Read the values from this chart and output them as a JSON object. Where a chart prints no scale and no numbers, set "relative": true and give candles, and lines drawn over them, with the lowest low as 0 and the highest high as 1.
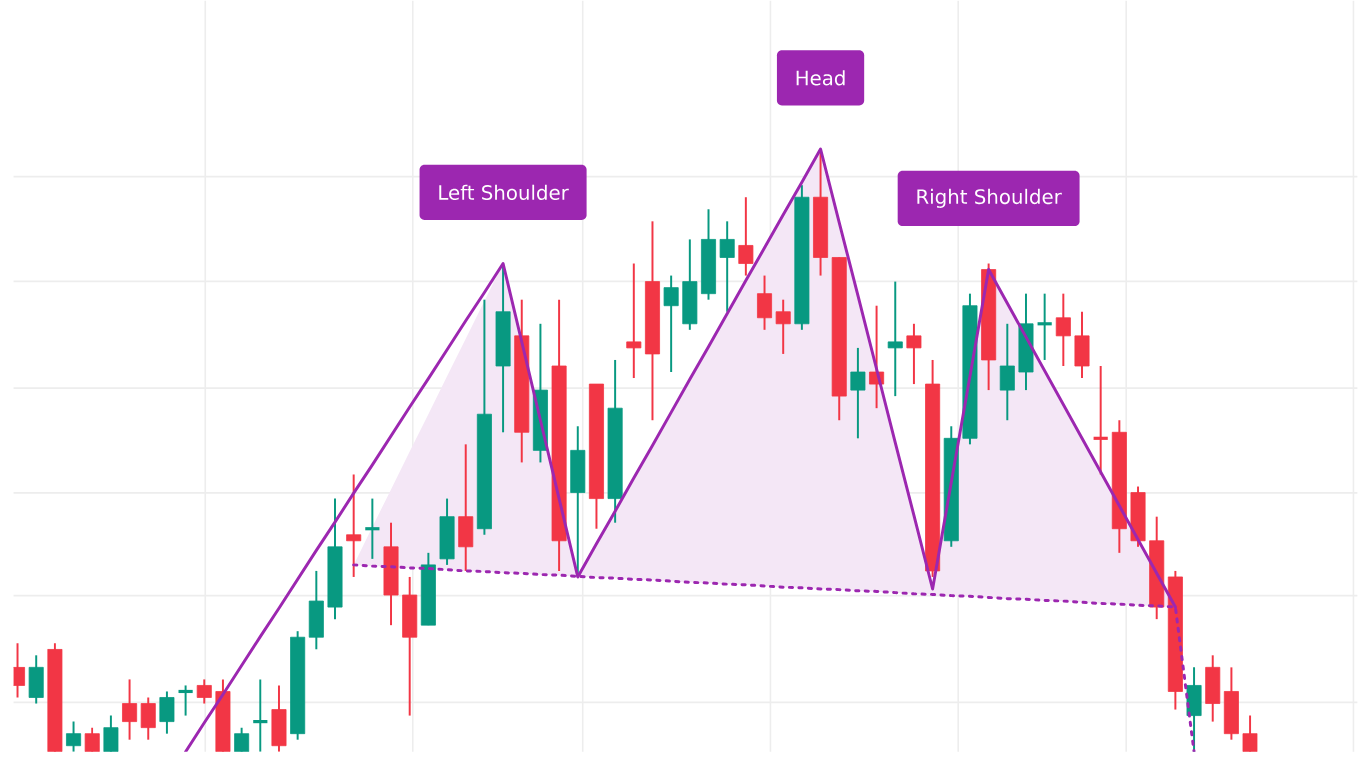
{
  "chart_data": {
    "type": "candlestick",
    "relative": true,
    "grid": true,
    "categories": [
      null,
      null,
      null,
      null,
      null,
      null,
      null,
      null,
      null,
      null,
      null,
      null,
      null,
      null,
      null,
      null,
      null,
      null,
      null,
      null,
      null,
      null,
      null,
      null,
      null,
      null,
      null,
      null,
      null,
      null,
      null,
      null,
      null,
      null,
      null,
      null,
      null,
      null,
      null,
      null,
      null,
      null,
      null,
      null,
      null,
      null,
      null,
      null,
      null,
      null,
      null,
      null,
      null,
      null,
      null,
      null,
      null,
      null,
      null,
      null,
      null,
      null,
      null,
      null,
      null,
      null,
      null
    ],
    "ohlc": [
      [
        0.14,
        0.18,
        0.09,
        0.11
      ],
      [
        0.09,
        0.16,
        0.08,
        0.14
      ],
      [
        0.17,
        0.18,
        0,
        0
      ],
      [
        0.01,
        0.05,
        0,
        0.03
      ],
      [
        0.03,
        0.04,
        0,
        0
      ],
      [
        0,
        0.06,
        0,
        0.04
      ],
      [
        0.08,
        0.12,
        0.02,
        0.05
      ],
      [
        0.08,
        0.09,
        0.02,
        0.04
      ],
      [
        0.05,
        0.1,
        0.03,
        0.09
      ],
      [
        0.1,
        0.11,
        0.06,
        0.1
      ],
      [
        0.11,
        0.12,
        0.08,
        0.09
      ],
      [
        0.1,
        0.12,
        0,
        0
      ],
      [
        0,
        0.04,
        0,
        0.03
      ],
      [
        0.05,
        0.12,
        0,
        0.05
      ],
      [
        0.07,
        0.11,
        0,
        0.01
      ],
      [
        0.03,
        0.2,
        0.02,
        0.19
      ],
      [
        0.19,
        0.3,
        0.17,
        0.25
      ],
      [
        0.24,
        0.42,
        0.22,
        0.34
      ],
      [
        0.36,
        0.46,
        0.29,
        0.35
      ],
      [
        0.37,
        0.42,
        0.32,
        0.37
      ],
      [
        0.34,
        0.38,
        0.21,
        0.26
      ],
      [
        0.26,
        0.29,
        0.06,
        0.19
      ],
      [
        0.21,
        0.33,
        0.21,
        0.31
      ],
      [
        0.32,
        0.42,
        0.31,
        0.39
      ],
      [
        0.39,
        0.51,
        0.3,
        0.34
      ],
      [
        0.37,
        0.75,
        0.36,
        0.56
      ],
      [
        0.64,
        0.81,
        0.53,
        0.73
      ],
      [
        0.69,
        0.75,
        0.48,
        0.53
      ],
      [
        0.5,
        0.71,
        0.48,
        0.6
      ],
      [
        0.64,
        0.75,
        0.3,
        0.35
      ],
      [
        0.43,
        0.54,
        0.29,
        0.5
      ],
      [
        0.61,
        0.61,
        0.37,
        0.42
      ],
      [
        0.42,
        0.65,
        0.38,
        0.57
      ],
      [
        0.68,
        0.81,
        0.62,
        0.67
      ],
      [
        0.78,
        0.88,
        0.55,
        0.66
      ],
      [
        0.74,
        0.79,
        0.63,
        0.77
      ],
      [
        0.71,
        0.85,
        0.7,
        0.78
      ],
      [
        0.76,
        0.9,
        0.75,
        0.85
      ],
      [
        0.82,
        0.88,
        0.73,
        0.85
      ],
      [
        0.84,
        0.92,
        0.79,
        0.81
      ],
      [
        0.76,
        0.79,
        0.7,
        0.72
      ],
      [
        0.73,
        0.75,
        0.66,
        0.71
      ],
      [
        0.71,
        0.94,
        0.7,
        0.92
      ],
      [
        0.92,
        1.0,
        0.79,
        0.82
      ],
      [
        0.82,
        0.82,
        0.55,
        0.59
      ],
      [
        0.6,
        0.67,
        0.52,
        0.63
      ],
      [
        0.63,
        0.74,
        0.57,
        0.61
      ],
      [
        0.67,
        0.78,
        0.59,
        0.68
      ],
      [
        0.69,
        0.71,
        0.61,
        0.67
      ],
      [
        0.61,
        0.65,
        0.29,
        0.3
      ],
      [
        0.35,
        0.54,
        0.34,
        0.52
      ],
      [
        0.52,
        0.76,
        0.51,
        0.74
      ],
      [
        0.8,
        0.81,
        0.6,
        0.65
      ],
      [
        0.6,
        0.71,
        0.55,
        0.64
      ],
      [
        0.63,
        0.76,
        0.6,
        0.71
      ],
      [
        0.71,
        0.76,
        0.65,
        0.71
      ],
      [
        0.72,
        0.76,
        0.64,
        0.69
      ],
      [
        0.69,
        0.73,
        0.62,
        0.64
      ],
      [
        0.52,
        0.64,
        0.46,
        0.52
      ],
      [
        0.53,
        0.55,
        0.33,
        0.37
      ],
      [
        0.43,
        0.44,
        0.34,
        0.35
      ],
      [
        0.35,
        0.39,
        0.22,
        0.24
      ],
      [
        0.29,
        0.3,
        0.07,
        0.1
      ],
      [
        0.06,
        0.14,
        0,
        0.11
      ],
      [
        0.14,
        0.16,
        0.05,
        0.08
      ],
      [
        0.1,
        0.14,
        0.02,
        0.03
      ],
      [
        0.03,
        0.06,
        0,
        0
      ]
    ],
    "colors": [
      "#f23645",
      "#089981",
      "#f23645",
      "#089981",
      "#f23645",
      "#089981",
      "#f23645",
      "#f23645",
      "#089981",
      "#089981",
      "#f23645",
      "#f23645",
      "#089981",
      "#089981",
      "#f23645",
      "#089981",
      "#089981",
      "#089981",
      "#f23645",
      "#089981",
      "#f23645",
      "#f23645",
      "#089981",
      "#089981",
      "#f23645",
      "#089981",
      "#089981",
      "#f23645",
      "#089981",
      "#f23645",
      "#089981",
      "#f23645",
      "#089981",
      "#f23645",
      "#f23645",
      "#089981",
      "#089981",
      "#089981",
      "#089981",
      "#f23645",
      "#f23645",
      "#f23645",
      "#089981",
      "#f23645",
      "#f23645",
      "#089981",
      "#f23645",
      "#089981",
      "#f23645",
      "#f23645",
      "#089981",
      "#089981",
      "#f23645",
      "#089981",
      "#089981",
      "#089981",
      "#f23645",
      "#f23645",
      "#f23645",
      "#f23645",
      "#f23645",
      "#f23645",
      "#f23645",
      "#089981",
      "#f23645",
      "#f23645",
      "#f23645"
    ],
    "series": [
      {
        "type": "line",
        "color": "#9c27b0",
        "line_style": "solid",
        "values": [
          null,
          null,
          null,
          null,
          null,
          null,
          null,
          null,
          null,
          0,
          0.048,
          0.095,
          0.143,
          0.191,
          0.238,
          0.286,
          0.334,
          0.381,
          0.429,
          0.476,
          0.524,
          0.572,
          0.619,
          0.667,
          0.715,
          0.762,
          0.81,
          0.68,
          0.55,
          0.42,
          0.29,
          0.345,
          0.399,
          0.454,
          0.508,
          0.563,
          0.618,
          0.672,
          0.727,
          0.782,
          0.836,
          0.891,
          0.945,
          1.0,
          0.878,
          0.757,
          0.635,
          0.513,
          0.392,
          0.27,
          0.447,
          0.623,
          0.8,
          0.744,
          0.688,
          0.632,
          0.576,
          0.52,
          0.464,
          0.408,
          0.352,
          0.296,
          0.24,
          null,
          null,
          null,
          null
        ],
        "upper": [
          null,
          null,
          null,
          null,
          null,
          null,
          null,
          null,
          null,
          null,
          null,
          null,
          null,
          null,
          null,
          null,
          null,
          null,
          0.31,
          0.373,
          0.435,
          0.498,
          0.56,
          0.623,
          0.685,
          0.748,
          0.81,
          0.68,
          0.55,
          0.42,
          0.29,
          0.345,
          0.399,
          0.454,
          0.508,
          0.563,
          0.618,
          0.672,
          0.727,
          0.782,
          0.836,
          0.891,
          0.945,
          1.0,
          0.878,
          0.757,
          0.635,
          0.513,
          0.392,
          0.27,
          0.447,
          0.623,
          0.8,
          0.744,
          0.688,
          0.632,
          0.576,
          0.52,
          0.464,
          0.408,
          0.352,
          0.296,
          0.24,
          null,
          null,
          null,
          null
        ],
        "lower": [
          null,
          null,
          null,
          null,
          null,
          null,
          null,
          null,
          null,
          null,
          null,
          null,
          null,
          null,
          null,
          null,
          null,
          null,
          0.31,
          0.308,
          0.307,
          0.305,
          0.304,
          0.302,
          0.3,
          0.299,
          0.297,
          0.296,
          0.294,
          0.293,
          0.29,
          0.29,
          0.288,
          0.286,
          0.285,
          0.283,
          0.281,
          0.28,
          0.278,
          0.277,
          0.275,
          0.273,
          0.272,
          0.27,
          0.269,
          0.267,
          0.266,
          0.264,
          0.262,
          0.261,
          0.259,
          0.258,
          0.256,
          0.254,
          0.253,
          0.251,
          0.25,
          0.248,
          0.246,
          0.245,
          0.243,
          0.242,
          0.24,
          null,
          null,
          null,
          null
        ]
      },
      {
        "type": "line",
        "color": "#9c27b0",
        "line_style": "dotted",
        "values": [
          null,
          null,
          null,
          null,
          null,
          null,
          null,
          null,
          null,
          null,
          null,
          null,
          null,
          null,
          null,
          null,
          null,
          null,
          0.31,
          0.308,
          0.307,
          0.305,
          0.304,
          0.302,
          0.3,
          0.299,
          0.297,
          0.296,
          0.294,
          0.293,
          0.291,
          0.289,
          0.288,
          0.286,
          0.285,
          0.283,
          0.281,
          0.28,
          0.278,
          0.277,
          0.275,
          0.273,
          0.272,
          0.27,
          0.269,
          0.267,
          0.266,
          0.264,
          0.262,
          0.261,
          0.259,
          0.258,
          0.256,
          0.254,
          0.253,
          0.251,
          0.25,
          0.248,
          0.246,
          0.245,
          0.243,
          0.242,
          0.24,
          0,
          null,
          null,
          null
        ]
      }
    ],
    "annotations": [
      "Left Shoulder",
      "Head",
      "Right Shoulder"
    ]
  }
}
